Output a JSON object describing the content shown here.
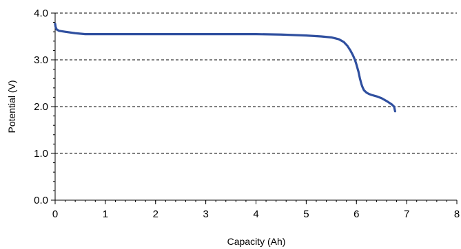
{
  "chart_data": {
    "type": "line",
    "title": "",
    "xlabel": "Capacity (Ah)",
    "ylabel": "Potential (V)",
    "xlim": [
      0,
      8
    ],
    "ylim": [
      0,
      4
    ],
    "x_ticks": [
      "0",
      "1",
      "2",
      "3",
      "4",
      "5",
      "6",
      "7",
      "8"
    ],
    "y_ticks": [
      "0.0",
      "1.0",
      "2.0",
      "3.0",
      "4.0"
    ],
    "grid": "horizontal dashed",
    "legend": "none",
    "series": [
      {
        "color": "#2f4f9f",
        "x": [
          0,
          0.01,
          0.03,
          0.08,
          0.2,
          0.4,
          0.6,
          1.0,
          2.0,
          3.0,
          4.0,
          4.5,
          5.0,
          5.3,
          5.5,
          5.65,
          5.75,
          5.82,
          5.88,
          5.93,
          5.97,
          6.0,
          6.04,
          6.07,
          6.1,
          6.12,
          6.15,
          6.2,
          6.25,
          6.3,
          6.4,
          6.5,
          6.6,
          6.7,
          6.75,
          6.77
        ],
        "y": [
          3.77,
          3.7,
          3.65,
          3.62,
          3.6,
          3.57,
          3.55,
          3.55,
          3.55,
          3.55,
          3.55,
          3.54,
          3.52,
          3.5,
          3.48,
          3.44,
          3.38,
          3.3,
          3.2,
          3.1,
          3.0,
          2.9,
          2.75,
          2.6,
          2.48,
          2.42,
          2.35,
          2.3,
          2.27,
          2.25,
          2.22,
          2.18,
          2.12,
          2.05,
          2.0,
          1.9
        ]
      }
    ]
  }
}
